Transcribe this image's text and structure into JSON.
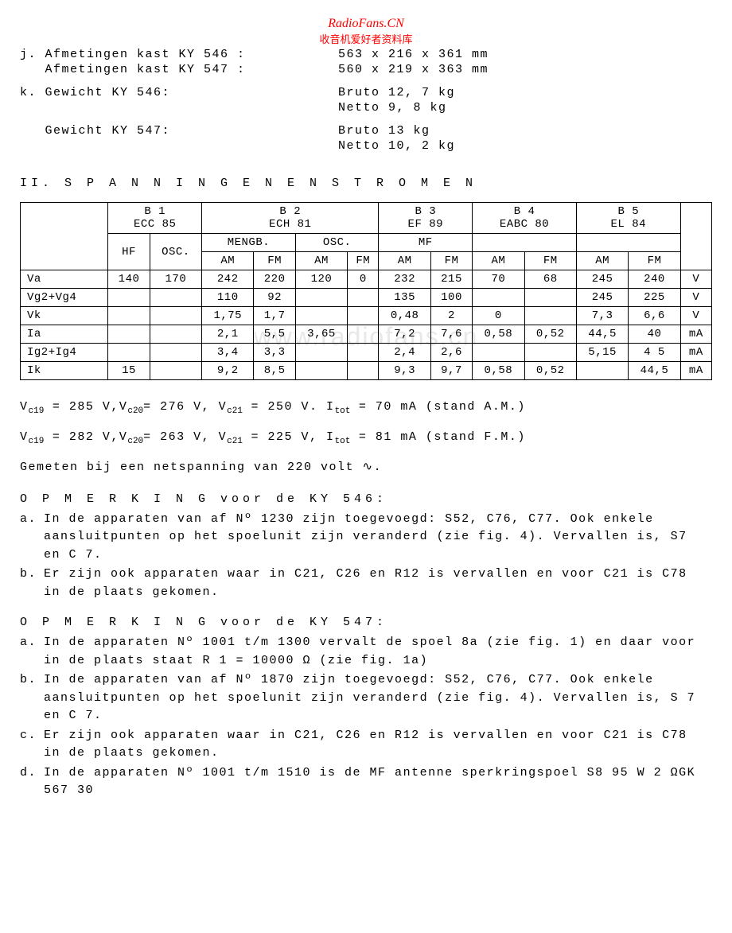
{
  "watermark": {
    "line1": "RadioFans.CN",
    "line2": "收音机爱好者资料库",
    "bg": "www.radiofans.cn"
  },
  "specs": {
    "j_label1": "j. Afmetingen kast KY 546 :",
    "j_value1": "563 x 216 x 361  mm",
    "j_label2": "   Afmetingen kast KY 547 :",
    "j_value2": "560 x 219 x 363  mm",
    "k_label1": "k. Gewicht KY 546:",
    "k_value1a": "Bruto 12, 7 kg",
    "k_value1b": "Netto  9, 8 kg",
    "k_label2": "   Gewicht KY 547:",
    "k_value2a": "Bruto 13    kg",
    "k_value2b": "Netto 10, 2 kg"
  },
  "section2": "II. S P A N N I N G E N   E N   S T R O M E N",
  "table": {
    "headers": {
      "b1": "B 1",
      "b1_tube": "ECC 85",
      "b2": "B 2",
      "b2_tube": "ECH 81",
      "b3": "B 3",
      "b3_tube": "EF 89",
      "b4": "B 4",
      "b4_tube": "EABC 80",
      "b5": "B 5",
      "b5_tube": "EL 84",
      "hf": "HF",
      "osc": "OSC.",
      "mengb": "MENGB.",
      "osc2": "OSC.",
      "mf": "MF",
      "am": "AM",
      "fm": "FM"
    },
    "rows": [
      {
        "label": "Va",
        "hf": "140",
        "osc": "170",
        "mengb_am": "242",
        "mengb_fm": "220",
        "osc_am": "120",
        "osc_fm": "0",
        "mf_am": "232",
        "mf_fm": "215",
        "b4_am": "70",
        "b4_fm": "68",
        "b5_am": "245",
        "b5_fm": "240",
        "unit": "V"
      },
      {
        "label": "Vg2+Vg4",
        "hf": "",
        "osc": "",
        "mengb_am": "110",
        "mengb_fm": "92",
        "osc_am": "",
        "osc_fm": "",
        "mf_am": "135",
        "mf_fm": "100",
        "b4_am": "",
        "b4_fm": "",
        "b5_am": "245",
        "b5_fm": "225",
        "unit": "V"
      },
      {
        "label": "Vk",
        "hf": "",
        "osc": "",
        "mengb_am": "1,75",
        "mengb_fm": "1,7",
        "osc_am": "",
        "osc_fm": "",
        "mf_am": "0,48",
        "mf_fm": "2",
        "b4_am": "0",
        "b4_fm": "",
        "b5_am": "7,3",
        "b5_fm": "6,6",
        "unit": "V"
      },
      {
        "label": "Ia",
        "hf": "",
        "osc": "",
        "mengb_am": "2,1",
        "mengb_fm": "5,5",
        "osc_am": "3,65",
        "osc_fm": "",
        "mf_am": "7,2",
        "mf_fm": "7,6",
        "b4_am": "0,58",
        "b4_fm": "0,52",
        "b5_am": "44,5",
        "b5_fm": "40",
        "unit": "mA"
      },
      {
        "label": "Ig2+Ig4",
        "hf": "",
        "osc": "",
        "mengb_am": "3,4",
        "mengb_fm": "3,3",
        "osc_am": "",
        "osc_fm": "",
        "mf_am": "2,4",
        "mf_fm": "2,6",
        "b4_am": "",
        "b4_fm": "",
        "b5_am": "5,15",
        "b5_fm": "4 5",
        "unit": "mA"
      },
      {
        "label": "Ik",
        "hf": "15",
        "osc": "",
        "mengb_am": "9,2",
        "mengb_fm": "8,5",
        "osc_am": "",
        "osc_fm": "",
        "mf_am": "9,3",
        "mf_fm": "9,7",
        "b4_am": "0,58",
        "b4_fm": "0,52",
        "b5_am": "",
        "b5_fm": "44,5",
        "unit": "mA"
      }
    ]
  },
  "measurements": {
    "line1_a": "V",
    "line1_b": " = 285 V,V",
    "line1_c": "= 276 V, V",
    "line1_d": " = 250 V. I",
    "line1_e": " = 70 mA (stand A.M.)",
    "line2_a": "V",
    "line2_b": " = 282 V,V",
    "line2_c": "= 263 V, V",
    "line2_d": " = 225 V, I",
    "line2_e": " = 81 mA (stand F.M.)",
    "sub_c19": "c19",
    "sub_c20": "c20",
    "sub_c21": "c21",
    "sub_tot": "tot",
    "line3": "Gemeten bij een netspanning van 220 volt ∿."
  },
  "opmerking546": {
    "heading": "O P M E R K I N G  voor de KY 546:",
    "a": "In de apparaten van af Nº 1230 zijn toegevoegd: S52, C76, C77. Ook enkele aansluitpunten op het spoelunit zijn veranderd (zie fig. 4). Vervallen is, S7 en C 7.",
    "b": "Er zijn ook apparaten waar in C21, C26 en R12 is vervallen en voor C21 is C78 in de plaats gekomen."
  },
  "opmerking547": {
    "heading": "O P M E R K I N G  voor de KY 547:",
    "a": "In de apparaten Nº 1001 t/m 1300 vervalt de spoel 8a (zie fig. 1) en daar voor in de plaats staat R 1 = 10000 Ω (zie fig. 1a)",
    "b": "In de apparaten van af Nº 1870 zijn toegevoegd: S52, C76, C77. Ook enkele aansluitpunten op het spoelunit zijn veranderd (zie fig. 4). Vervallen is, S 7 en C 7.",
    "c": "Er zijn ook apparaten waar in C21, C26 en R12 is vervallen en voor C21 is C78 in de plaats gekomen.",
    "d": "In de apparaten Nº 1001 t/m 1510 is de MF antenne sperkringspoel S8 95 W  2 ΩGK 567 30"
  }
}
